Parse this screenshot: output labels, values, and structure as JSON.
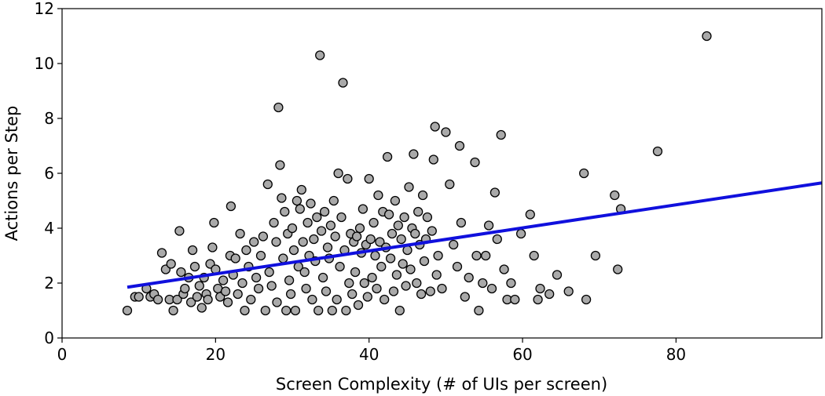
{
  "chart_data": {
    "type": "scatter",
    "xlabel": "Screen Complexity (# of UIs per screen)",
    "ylabel": "Actions per Step",
    "xlim": [
      0,
      99
    ],
    "ylim": [
      0,
      12
    ],
    "xticks": [
      0,
      20,
      40,
      60,
      80
    ],
    "yticks": [
      0,
      2,
      4,
      6,
      8,
      10,
      12
    ],
    "grid": false,
    "legend": "none",
    "point_color": "#a9a9a9",
    "point_edge_color": "#000000",
    "trend_color": "#1010dd",
    "trend_line": {
      "x": [
        8.5,
        99
      ],
      "y": [
        1.85,
        5.65
      ]
    },
    "points": [
      [
        8.5,
        1.0
      ],
      [
        9.5,
        1.5
      ],
      [
        10.0,
        1.5
      ],
      [
        11.0,
        1.8
      ],
      [
        11.5,
        1.5
      ],
      [
        12.0,
        1.6
      ],
      [
        12.5,
        1.4
      ],
      [
        13.0,
        3.1
      ],
      [
        13.5,
        2.5
      ],
      [
        14.0,
        1.4
      ],
      [
        14.2,
        2.7
      ],
      [
        14.5,
        1.0
      ],
      [
        15.0,
        1.4
      ],
      [
        15.3,
        3.9
      ],
      [
        15.5,
        2.4
      ],
      [
        15.8,
        1.6
      ],
      [
        16.0,
        1.8
      ],
      [
        16.5,
        2.2
      ],
      [
        16.8,
        1.3
      ],
      [
        17.0,
        3.2
      ],
      [
        17.3,
        2.6
      ],
      [
        17.6,
        1.5
      ],
      [
        17.9,
        1.9
      ],
      [
        18.2,
        1.1
      ],
      [
        18.5,
        2.2
      ],
      [
        18.8,
        1.6
      ],
      [
        19.0,
        1.4
      ],
      [
        19.3,
        2.7
      ],
      [
        19.6,
        3.3
      ],
      [
        19.8,
        4.2
      ],
      [
        20.0,
        2.5
      ],
      [
        20.3,
        1.8
      ],
      [
        20.6,
        1.5
      ],
      [
        21.0,
        2.1
      ],
      [
        21.3,
        1.7
      ],
      [
        21.6,
        1.3
      ],
      [
        21.9,
        3.0
      ],
      [
        22.0,
        4.8
      ],
      [
        22.3,
        2.3
      ],
      [
        22.6,
        2.9
      ],
      [
        22.9,
        1.6
      ],
      [
        23.2,
        3.8
      ],
      [
        23.5,
        2.0
      ],
      [
        23.8,
        1.0
      ],
      [
        24.0,
        3.2
      ],
      [
        24.3,
        2.6
      ],
      [
        24.6,
        1.4
      ],
      [
        25.0,
        3.5
      ],
      [
        25.3,
        2.2
      ],
      [
        25.6,
        1.8
      ],
      [
        25.9,
        3.0
      ],
      [
        26.2,
        3.7
      ],
      [
        26.5,
        1.0
      ],
      [
        26.8,
        5.6
      ],
      [
        27.0,
        2.4
      ],
      [
        27.3,
        1.9
      ],
      [
        27.6,
        4.2
      ],
      [
        27.9,
        3.5
      ],
      [
        28.0,
        1.3
      ],
      [
        28.2,
        8.4
      ],
      [
        28.4,
        6.3
      ],
      [
        28.6,
        5.1
      ],
      [
        28.8,
        2.9
      ],
      [
        29.0,
        4.6
      ],
      [
        29.2,
        1.0
      ],
      [
        29.4,
        3.8
      ],
      [
        29.6,
        2.1
      ],
      [
        29.8,
        1.6
      ],
      [
        30.0,
        4.0
      ],
      [
        30.2,
        3.2
      ],
      [
        30.4,
        1.0
      ],
      [
        30.6,
        5.0
      ],
      [
        30.8,
        2.6
      ],
      [
        31.0,
        4.7
      ],
      [
        31.2,
        5.4
      ],
      [
        31.4,
        3.5
      ],
      [
        31.6,
        2.4
      ],
      [
        31.8,
        1.8
      ],
      [
        32.0,
        4.2
      ],
      [
        32.2,
        3.0
      ],
      [
        32.4,
        4.9
      ],
      [
        32.6,
        1.4
      ],
      [
        32.8,
        3.6
      ],
      [
        33.0,
        2.8
      ],
      [
        33.2,
        4.4
      ],
      [
        33.4,
        1.0
      ],
      [
        33.6,
        10.3
      ],
      [
        33.8,
        3.9
      ],
      [
        34.0,
        2.2
      ],
      [
        34.2,
        4.6
      ],
      [
        34.4,
        1.7
      ],
      [
        34.6,
        3.3
      ],
      [
        34.8,
        2.9
      ],
      [
        35.0,
        4.1
      ],
      [
        35.2,
        1.0
      ],
      [
        35.4,
        5.0
      ],
      [
        35.6,
        3.7
      ],
      [
        35.8,
        1.4
      ],
      [
        36.0,
        6.0
      ],
      [
        36.2,
        2.6
      ],
      [
        36.4,
        4.4
      ],
      [
        36.6,
        9.3
      ],
      [
        36.8,
        3.2
      ],
      [
        37.0,
        1.0
      ],
      [
        37.2,
        5.8
      ],
      [
        37.4,
        2.0
      ],
      [
        37.6,
        3.8
      ],
      [
        37.8,
        1.6
      ],
      [
        38.0,
        3.5
      ],
      [
        38.2,
        2.4
      ],
      [
        38.4,
        3.7
      ],
      [
        38.6,
        1.2
      ],
      [
        38.8,
        4.0
      ],
      [
        39.0,
        3.1
      ],
      [
        39.2,
        4.7
      ],
      [
        39.4,
        2.0
      ],
      [
        39.6,
        3.4
      ],
      [
        39.8,
        1.5
      ],
      [
        40.0,
        5.8
      ],
      [
        40.2,
        3.6
      ],
      [
        40.4,
        2.2
      ],
      [
        40.6,
        4.2
      ],
      [
        40.8,
        3.0
      ],
      [
        41.0,
        1.8
      ],
      [
        41.2,
        5.2
      ],
      [
        41.4,
        3.5
      ],
      [
        41.6,
        2.6
      ],
      [
        41.8,
        4.6
      ],
      [
        42.0,
        1.4
      ],
      [
        42.2,
        3.3
      ],
      [
        42.4,
        6.6
      ],
      [
        42.6,
        4.5
      ],
      [
        42.8,
        2.9
      ],
      [
        43.0,
        3.8
      ],
      [
        43.2,
        1.7
      ],
      [
        43.4,
        5.0
      ],
      [
        43.6,
        2.3
      ],
      [
        43.8,
        4.1
      ],
      [
        44.0,
        1.0
      ],
      [
        44.2,
        3.6
      ],
      [
        44.4,
        2.7
      ],
      [
        44.6,
        4.4
      ],
      [
        44.8,
        1.9
      ],
      [
        45.0,
        3.2
      ],
      [
        45.2,
        5.5
      ],
      [
        45.4,
        2.5
      ],
      [
        45.6,
        4.0
      ],
      [
        45.8,
        6.7
      ],
      [
        46.0,
        3.8
      ],
      [
        46.2,
        2.0
      ],
      [
        46.4,
        4.6
      ],
      [
        46.6,
        3.4
      ],
      [
        46.8,
        1.6
      ],
      [
        47.0,
        5.2
      ],
      [
        47.2,
        2.8
      ],
      [
        47.4,
        3.6
      ],
      [
        47.6,
        4.4
      ],
      [
        48.0,
        1.7
      ],
      [
        48.2,
        3.9
      ],
      [
        48.4,
        6.5
      ],
      [
        48.6,
        7.7
      ],
      [
        48.8,
        2.3
      ],
      [
        49.0,
        3.0
      ],
      [
        49.5,
        1.8
      ],
      [
        50.0,
        7.5
      ],
      [
        50.5,
        5.6
      ],
      [
        51.0,
        3.4
      ],
      [
        51.5,
        2.6
      ],
      [
        51.8,
        7.0
      ],
      [
        52.0,
        4.2
      ],
      [
        52.5,
        1.5
      ],
      [
        53.0,
        2.2
      ],
      [
        53.8,
        6.4
      ],
      [
        54.0,
        3.0
      ],
      [
        54.3,
        1.0
      ],
      [
        54.8,
        2.0
      ],
      [
        55.2,
        3.0
      ],
      [
        55.6,
        4.1
      ],
      [
        56.0,
        1.8
      ],
      [
        56.4,
        5.3
      ],
      [
        56.7,
        3.6
      ],
      [
        57.2,
        7.4
      ],
      [
        57.6,
        2.5
      ],
      [
        58.0,
        1.4
      ],
      [
        58.5,
        2.0
      ],
      [
        59.0,
        1.4
      ],
      [
        59.8,
        3.8
      ],
      [
        61.0,
        4.5
      ],
      [
        61.5,
        3.0
      ],
      [
        62.0,
        1.4
      ],
      [
        62.3,
        1.8
      ],
      [
        63.5,
        1.6
      ],
      [
        64.5,
        2.3
      ],
      [
        66.0,
        1.7
      ],
      [
        68.0,
        6.0
      ],
      [
        68.3,
        1.4
      ],
      [
        69.5,
        3.0
      ],
      [
        72.0,
        5.2
      ],
      [
        72.4,
        2.5
      ],
      [
        72.8,
        4.7
      ],
      [
        77.6,
        6.8
      ],
      [
        84.0,
        11.0
      ]
    ]
  }
}
